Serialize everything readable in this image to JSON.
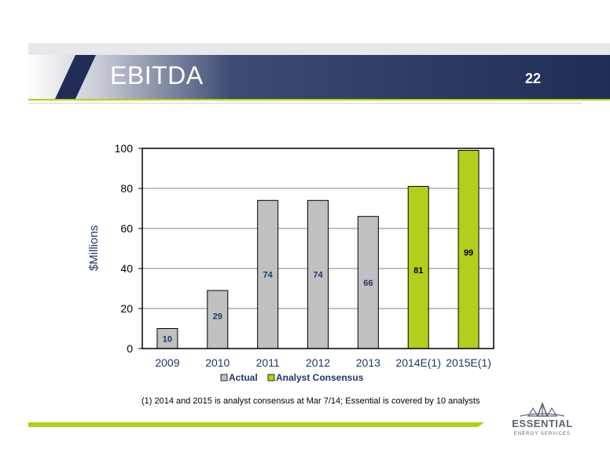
{
  "slide": {
    "title": "EBITDA",
    "page_number": "22",
    "footnote": "(1)  2014 and 2015 is analyst consensus at Mar 7/14; Essential is covered by 10 analysts"
  },
  "logo": {
    "name": "ESSENTIAL",
    "tagline": "ENERGY SERVICES"
  },
  "colors": {
    "navy": "#1f2d57",
    "actual": "#c0c0c0",
    "consensus": "#b5cd1c",
    "label_navy": "#1f3864"
  },
  "chart_data": {
    "type": "bar",
    "categories": [
      "2009",
      "2010",
      "2011",
      "2012",
      "2013",
      "2014E(1)",
      "2015E(1)"
    ],
    "values": [
      10,
      29,
      74,
      74,
      66,
      81,
      99
    ],
    "series_assignment": [
      "Actual",
      "Actual",
      "Actual",
      "Actual",
      "Actual",
      "Analyst Consensus",
      "Analyst Consensus"
    ],
    "legend": [
      "Actual",
      "Analyst Consensus"
    ],
    "ylabel": "$Millions",
    "ylim": [
      0,
      100
    ],
    "yticks": [
      0,
      20,
      40,
      60,
      80,
      100
    ],
    "grid": true,
    "legend_position": "bottom"
  }
}
